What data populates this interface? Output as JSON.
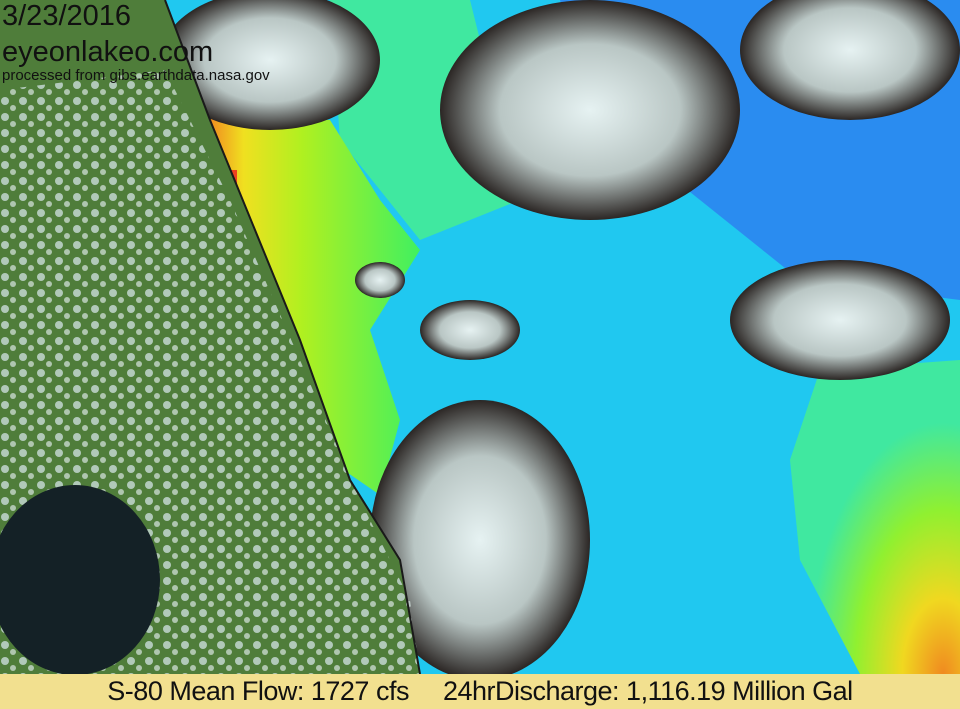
{
  "overlay": {
    "date": "3/23/2016",
    "site": "eyeonlakeo.com",
    "credit": "processed from gibs.earthdata.nasa.gov"
  },
  "footer": {
    "flow": "S-80 Mean Flow: 1727 cfs",
    "discharge": "24hrDischarge: 1,116.19 Million Gal"
  },
  "colors": {
    "land": "#4f7d3a",
    "cloud": "#d9e6e6",
    "ocean_low": "#2a8cf0",
    "ocean_mid": "#1ed6f0",
    "ocean_high": "#a8f020",
    "ocean_peak": "#f04020",
    "footer_bg": "#f2e08f"
  }
}
